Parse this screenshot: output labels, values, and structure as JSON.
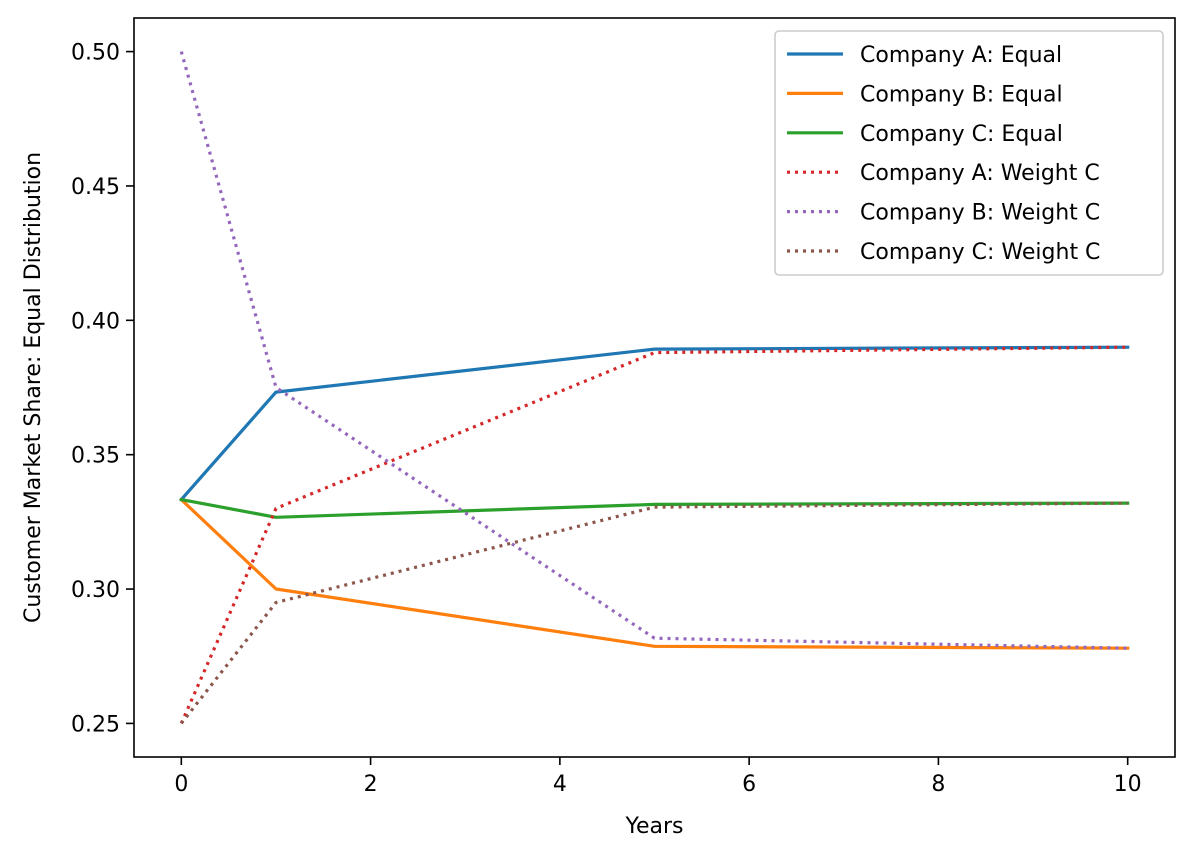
{
  "chart_data": {
    "type": "line",
    "xlabel": "Years",
    "ylabel": "Customer Market Share: Equal Distribution",
    "xlim": [
      -0.5,
      10.5
    ],
    "ylim": [
      0.2375,
      0.5125
    ],
    "x_ticks": [
      0,
      2,
      4,
      6,
      8,
      10
    ],
    "y_ticks": [
      0.25,
      0.3,
      0.35,
      0.4,
      0.45,
      0.5
    ],
    "x_tick_labels": [
      "0",
      "2",
      "4",
      "6",
      "8",
      "10"
    ],
    "y_tick_labels": [
      "0.25",
      "0.30",
      "0.35",
      "0.40",
      "0.45",
      "0.50"
    ],
    "grid": false,
    "legend_position": "top-right",
    "x": [
      0,
      1,
      5,
      10
    ],
    "series": [
      {
        "name": "Company A: Equal",
        "style": "solid",
        "color": "#1f77b4",
        "values": [
          0.3333,
          0.3733,
          0.3893,
          0.39
        ]
      },
      {
        "name": "Company B: Equal",
        "style": "solid",
        "color": "#ff7f0e",
        "values": [
          0.3333,
          0.3,
          0.2787,
          0.278
        ]
      },
      {
        "name": "Company C: Equal",
        "style": "solid",
        "color": "#2ca02c",
        "values": [
          0.3333,
          0.3267,
          0.3315,
          0.332
        ]
      },
      {
        "name": "Company A: Weight C",
        "style": "dotted",
        "color": "#d62728",
        "values": [
          0.25,
          0.33,
          0.388,
          0.39
        ]
      },
      {
        "name": "Company B: Weight C",
        "style": "dotted",
        "color": "#9467bd",
        "values": [
          0.5,
          0.375,
          0.2817,
          0.278
        ]
      },
      {
        "name": "Company C: Weight C",
        "style": "dotted",
        "color": "#8c564b",
        "values": [
          0.25,
          0.295,
          0.3305,
          0.332
        ]
      }
    ]
  }
}
